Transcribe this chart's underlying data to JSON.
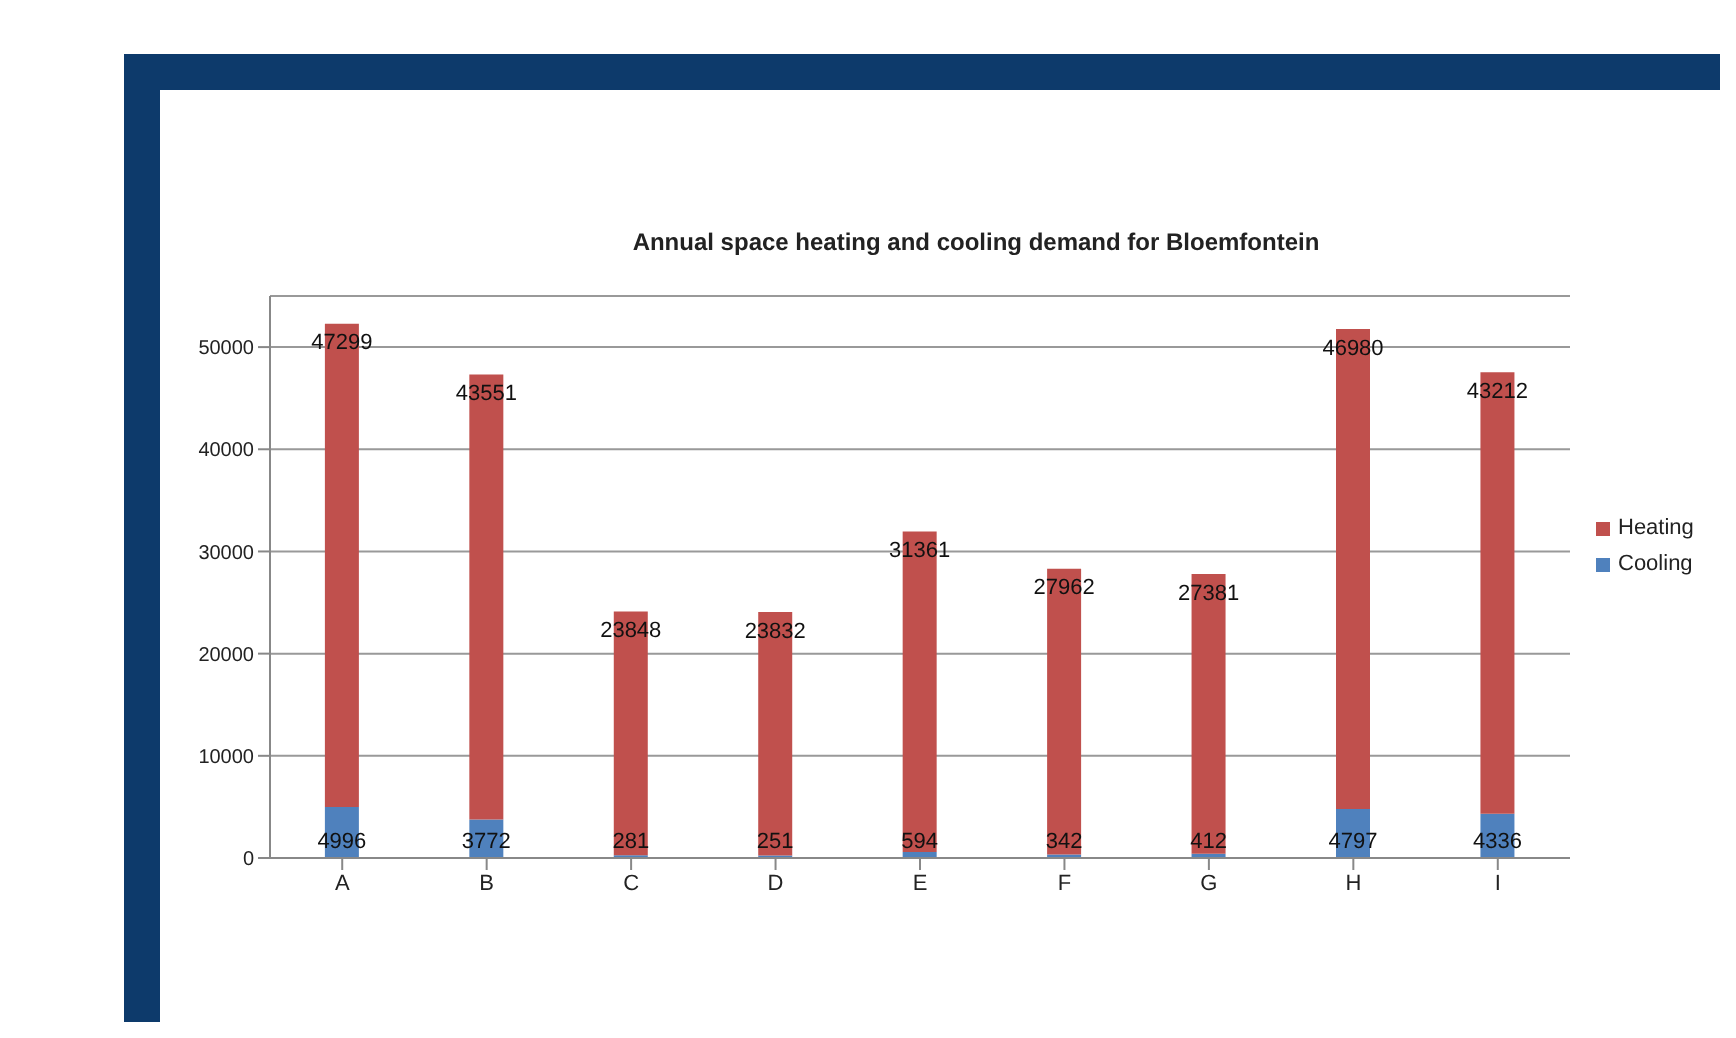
{
  "chart_data": {
    "type": "bar",
    "title": "Annual space heating and cooling demand for Bloemfontein",
    "categories": [
      "A",
      "B",
      "C",
      "D",
      "E",
      "F",
      "G",
      "H",
      "I"
    ],
    "stacked": true,
    "series": [
      {
        "name": "Cooling",
        "color": "#4f81bd",
        "values": [
          4996,
          3772,
          281,
          251,
          594,
          342,
          412,
          4797,
          4336
        ]
      },
      {
        "name": "Heating",
        "color": "#c0504d",
        "values": [
          47299,
          43551,
          23848,
          23832,
          31361,
          27962,
          27381,
          46980,
          43212
        ]
      }
    ],
    "ylim": [
      0,
      55000
    ],
    "yticks": [
      0,
      10000,
      20000,
      30000,
      40000,
      50000
    ],
    "grid": "y",
    "legend": "right",
    "data_labels": true
  }
}
